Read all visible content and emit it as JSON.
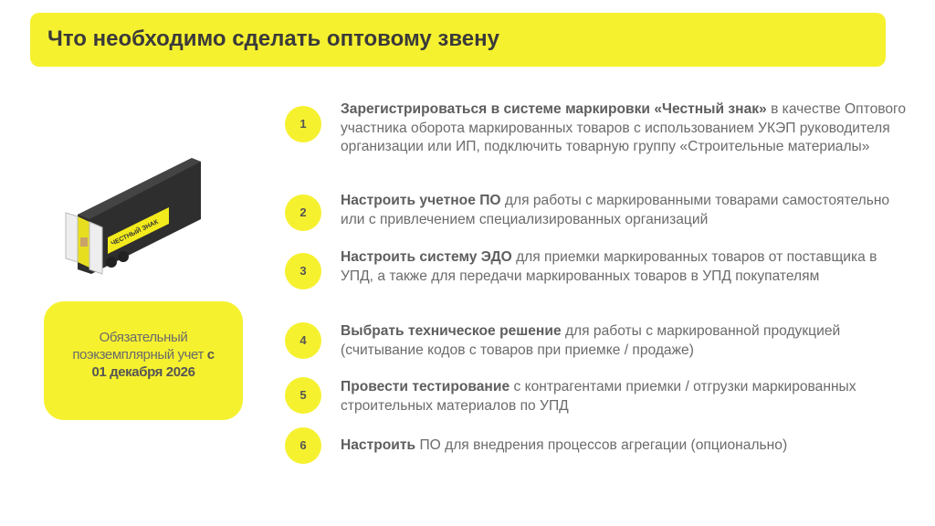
{
  "header": {
    "title": "Что необходимо сделать оптовому звену"
  },
  "note": {
    "line1": "Обязательный",
    "line2": "поэкземплярный учет",
    "bold_c": "с",
    "date": "01 декабря 2026"
  },
  "truck": {
    "logo_text": "ЧЕСТНЫЙ ЗНАК"
  },
  "steps": [
    {
      "num": "1",
      "bold": "Зарегистрироваться в системе маркировки «Честный знак»",
      "text": " в качестве Оптового участника оборота маркированных товаров с использованием УКЭП руководителя организации или ИП, подключить товарную группу «Строительные материалы»"
    },
    {
      "num": "2",
      "bold": "Настроить учетное ПО",
      "text": " для работы с маркированными товарами самостоятельно или с привлечением специализированных организаций"
    },
    {
      "num": "3",
      "bold": "Настроить систему ЭДО",
      "text": " для приемки маркированных товаров от поставщика в УПД, а также для передачи маркированных товаров в УПД покупателям"
    },
    {
      "num": "4",
      "bold": "Выбрать техническое решение",
      "text": " для работы с маркированной продукцией (считывание кодов с товаров при приемке / продаже)"
    },
    {
      "num": "5",
      "bold": "Провести тестирование",
      "text": " с контрагентами приемки / отгрузки маркированных строительных материалов по УПД"
    },
    {
      "num": "6",
      "bold": "Настроить",
      "text": " ПО для внедрения процессов агрегации (опционально)"
    }
  ],
  "colors": {
    "accent": "#f6f12f",
    "text": "#6b6b6b"
  }
}
